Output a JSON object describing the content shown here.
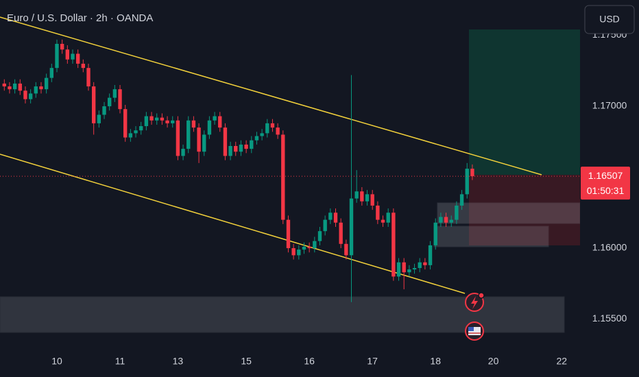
{
  "chart_data": {
    "type": "candlestick",
    "title": "Euro / U.S. Dollar · 2h · OANDA",
    "currency_button": "USD",
    "up_color": "#089981",
    "down_color": "#f23645",
    "grid": false,
    "xlim": [
      -10.82,
      99.35
    ],
    "xticks": [
      {
        "value": 0,
        "label": "10"
      },
      {
        "value": 12,
        "label": "11"
      },
      {
        "value": 23,
        "label": "13"
      },
      {
        "value": 36,
        "label": "15"
      },
      {
        "value": 48,
        "label": "16"
      },
      {
        "value": 60,
        "label": "17"
      },
      {
        "value": 72,
        "label": "18"
      },
      {
        "value": 83,
        "label": "20"
      },
      {
        "value": 96,
        "label": "22"
      }
    ],
    "ylim": [
      1.15261,
      1.17749
    ],
    "yticks": [
      {
        "value": 1.155,
        "label": "1.15500"
      },
      {
        "value": 1.16,
        "label": "1.16000"
      },
      {
        "value": 1.17,
        "label": "1.17000"
      },
      {
        "value": 1.175,
        "label": "1.17500"
      }
    ],
    "last_price": {
      "value": 1.16507,
      "label": "1.16507"
    },
    "countdown": "01:50:31",
    "x": [
      -10,
      -9,
      -8,
      -7,
      -6,
      -5,
      -4,
      -3,
      -2,
      -1,
      0,
      1,
      2,
      3,
      4,
      5,
      6,
      7,
      8,
      9,
      10,
      11,
      12,
      13,
      14,
      15,
      16,
      17,
      18,
      19,
      20,
      21,
      22,
      23,
      24,
      25,
      26,
      27,
      28,
      29,
      30,
      31,
      32,
      33,
      34,
      35,
      36,
      37,
      38,
      39,
      40,
      41,
      42,
      43,
      44,
      45,
      46,
      47,
      48,
      49,
      50,
      51,
      52,
      53,
      54,
      55,
      56,
      57,
      58,
      59,
      60,
      61,
      62,
      63,
      64,
      65,
      66,
      67,
      68,
      69,
      70,
      71,
      72,
      73,
      74,
      75,
      76,
      77,
      78,
      79
    ],
    "open": [
      1.1716,
      1.1714,
      1.1712,
      1.1716,
      1.1711,
      1.1705,
      1.1709,
      1.1714,
      1.1712,
      1.172,
      1.1727,
      1.1744,
      1.174,
      1.1733,
      1.1737,
      1.173,
      1.1727,
      1.1714,
      1.1688,
      1.1694,
      1.17,
      1.1706,
      1.1712,
      1.1698,
      1.1678,
      1.1681,
      1.1683,
      1.1686,
      1.1693,
      1.169,
      1.1692,
      1.169,
      1.1688,
      1.169,
      1.1665,
      1.167,
      1.169,
      1.1685,
      1.1668,
      1.168,
      1.169,
      1.1693,
      1.1685,
      1.1665,
      1.1672,
      1.1668,
      1.1673,
      1.167,
      1.1676,
      1.1679,
      1.1681,
      1.1688,
      1.1685,
      1.168,
      1.162,
      1.16,
      1.1595,
      1.1599,
      1.1601,
      1.16,
      1.1605,
      1.1612,
      1.162,
      1.1625,
      1.1618,
      1.1603,
      1.1595,
      1.1635,
      1.164,
      1.1633,
      1.1638,
      1.163,
      1.162,
      1.1618,
      1.1625,
      1.158,
      1.159,
      1.1583,
      1.1585,
      1.1586,
      1.159,
      1.1588,
      1.1602,
      1.1618,
      1.1622,
      1.1618,
      1.162,
      1.163,
      1.1638,
      1.1656
    ],
    "high": [
      1.1719,
      1.1717,
      1.1719,
      1.1719,
      1.1714,
      1.1712,
      1.1717,
      1.1717,
      1.1723,
      1.173,
      1.1747,
      1.1747,
      1.1743,
      1.174,
      1.174,
      1.1733,
      1.173,
      1.1717,
      1.1697,
      1.1703,
      1.1709,
      1.1715,
      1.1715,
      1.1701,
      1.1684,
      1.1686,
      1.1689,
      1.1696,
      1.1696,
      1.1695,
      1.1695,
      1.1693,
      1.1693,
      1.1693,
      1.1673,
      1.1693,
      1.1693,
      1.1688,
      1.1683,
      1.1693,
      1.1696,
      1.1696,
      1.1688,
      1.1675,
      1.1675,
      1.1676,
      1.1676,
      1.1679,
      1.1682,
      1.1684,
      1.1691,
      1.1691,
      1.1688,
      1.1683,
      1.1623,
      1.1603,
      1.1602,
      1.1604,
      1.1604,
      1.1608,
      1.1615,
      1.1623,
      1.1628,
      1.1628,
      1.1621,
      1.1606,
      1.1722,
      1.1655,
      1.1643,
      1.1641,
      1.1641,
      1.1633,
      1.1623,
      1.1628,
      1.1628,
      1.1593,
      1.1593,
      1.1588,
      1.1589,
      1.1593,
      1.1593,
      1.1605,
      1.1621,
      1.1625,
      1.1625,
      1.1623,
      1.1633,
      1.1641,
      1.166,
      1.1659
    ],
    "low": [
      1.1711,
      1.1709,
      1.1709,
      1.1708,
      1.1702,
      1.1702,
      1.1706,
      1.1709,
      1.1709,
      1.1717,
      1.1724,
      1.1737,
      1.173,
      1.173,
      1.1727,
      1.1724,
      1.1711,
      1.168,
      1.1685,
      1.1691,
      1.1697,
      1.1703,
      1.1695,
      1.1675,
      1.1675,
      1.1678,
      1.168,
      1.1683,
      1.1687,
      1.1687,
      1.1687,
      1.1685,
      1.1685,
      1.1662,
      1.1662,
      1.1667,
      1.1682,
      1.166,
      1.1665,
      1.1677,
      1.1687,
      1.1682,
      1.1662,
      1.1662,
      1.1665,
      1.1665,
      1.1667,
      1.1667,
      1.1673,
      1.1676,
      1.1678,
      1.1682,
      1.1677,
      1.1617,
      1.1597,
      1.1592,
      1.1592,
      1.1596,
      1.1597,
      1.1597,
      1.1602,
      1.1609,
      1.1617,
      1.1615,
      1.16,
      1.1592,
      1.1562,
      1.1632,
      1.163,
      1.163,
      1.1627,
      1.1617,
      1.1615,
      1.1615,
      1.1577,
      1.1577,
      1.1571,
      1.158,
      1.1582,
      1.1583,
      1.1585,
      1.1585,
      1.1599,
      1.1615,
      1.1615,
      1.1615,
      1.1617,
      1.1627,
      1.1635,
      1.1648
    ],
    "close": [
      1.1714,
      1.1712,
      1.1716,
      1.1711,
      1.1705,
      1.1709,
      1.1714,
      1.1712,
      1.172,
      1.1727,
      1.1744,
      1.174,
      1.1733,
      1.1737,
      1.173,
      1.1727,
      1.1714,
      1.1688,
      1.1694,
      1.17,
      1.1706,
      1.1712,
      1.1698,
      1.1678,
      1.1681,
      1.1683,
      1.1686,
      1.1693,
      1.169,
      1.1692,
      1.169,
      1.1688,
      1.169,
      1.1665,
      1.167,
      1.169,
      1.1685,
      1.1668,
      1.168,
      1.169,
      1.1693,
      1.1685,
      1.1665,
      1.1672,
      1.1668,
      1.1673,
      1.167,
      1.1676,
      1.1679,
      1.1681,
      1.1688,
      1.1685,
      1.168,
      1.162,
      1.16,
      1.1595,
      1.1599,
      1.1601,
      1.16,
      1.1605,
      1.1612,
      1.162,
      1.1625,
      1.1618,
      1.1603,
      1.1595,
      1.1635,
      1.164,
      1.1633,
      1.1638,
      1.163,
      1.162,
      1.1618,
      1.1625,
      1.158,
      1.159,
      1.1583,
      1.1585,
      1.1586,
      1.159,
      1.1588,
      1.1602,
      1.1618,
      1.1622,
      1.1618,
      1.162,
      1.163,
      1.1638,
      1.1656,
      1.16507
    ]
  }
}
